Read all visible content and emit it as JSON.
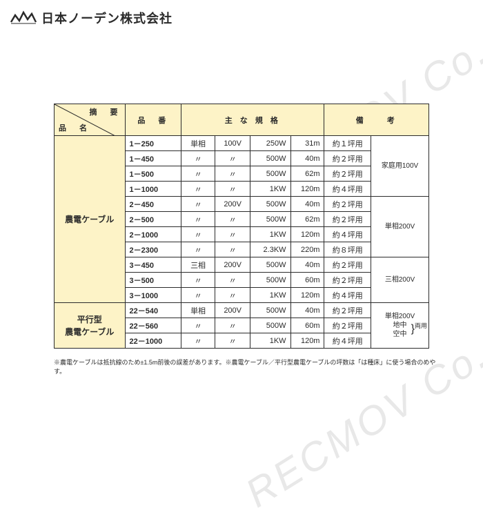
{
  "company": {
    "name": "日本ノーデン株式会社",
    "logo_color": "#2a2a2a"
  },
  "watermark": "RECMOV Co., Ltd.",
  "table": {
    "header": {
      "diag_top": "摘　要",
      "diag_bottom": "品　名",
      "col_partno": "品　番",
      "col_spec": "主 な 規 格",
      "col_note": "備　　考"
    },
    "header_bg": "#fdf3c7",
    "border_color": "#2a2a2a",
    "groups": [
      {
        "name": "農電ケーブル",
        "rows": [
          {
            "pn": "1－250",
            "phase": "単相",
            "volt": "100V",
            "watt": "250W",
            "len": "31m",
            "area": "約１坪用",
            "note": "家庭用100V",
            "note_span": 4
          },
          {
            "pn": "1－450",
            "phase": "〃",
            "volt": "〃",
            "watt": "500W",
            "len": "40m",
            "area": "約２坪用"
          },
          {
            "pn": "1－500",
            "phase": "〃",
            "volt": "〃",
            "watt": "500W",
            "len": "62m",
            "area": "約２坪用"
          },
          {
            "pn": "1－1000",
            "phase": "〃",
            "volt": "〃",
            "watt": "1KW",
            "len": "120m",
            "area": "約４坪用"
          },
          {
            "pn": "2－450",
            "phase": "〃",
            "volt": "200V",
            "watt": "500W",
            "len": "40m",
            "area": "約２坪用",
            "note": "単相200V",
            "note_span": 4
          },
          {
            "pn": "2－500",
            "phase": "〃",
            "volt": "〃",
            "watt": "500W",
            "len": "62m",
            "area": "約２坪用"
          },
          {
            "pn": "2－1000",
            "phase": "〃",
            "volt": "〃",
            "watt": "1KW",
            "len": "120m",
            "area": "約４坪用"
          },
          {
            "pn": "2－2300",
            "phase": "〃",
            "volt": "〃",
            "watt": "2.3KW",
            "len": "220m",
            "area": "約８坪用"
          },
          {
            "pn": "3－450",
            "phase": "三相",
            "volt": "200V",
            "watt": "500W",
            "len": "40m",
            "area": "約２坪用",
            "note": "三相200V",
            "note_span": 3
          },
          {
            "pn": "3－500",
            "phase": "〃",
            "volt": "〃",
            "watt": "500W",
            "len": "60m",
            "area": "約２坪用"
          },
          {
            "pn": "3－1000",
            "phase": "〃",
            "volt": "〃",
            "watt": "1KW",
            "len": "120m",
            "area": "約４坪用"
          }
        ]
      },
      {
        "name": "平行型\n農電ケーブル",
        "rows": [
          {
            "pn": "22－540",
            "phase": "単相",
            "volt": "200V",
            "watt": "500W",
            "len": "40m",
            "area": "約２坪用",
            "note": "単相200V\n地中\n空中",
            "note_span": 3,
            "brace": "両用"
          },
          {
            "pn": "22－560",
            "phase": "〃",
            "volt": "〃",
            "watt": "500W",
            "len": "60m",
            "area": "約２坪用"
          },
          {
            "pn": "22－1000",
            "phase": "〃",
            "volt": "〃",
            "watt": "1KW",
            "len": "120m",
            "area": "約４坪用"
          }
        ]
      }
    ]
  },
  "footnote": "※農電ケーブルは抵抗線のため±1.5m前後の誤差があります。※農電ケーブル／平行型農電ケーブルの坪数は「は種床」に使う場合のめやす。"
}
